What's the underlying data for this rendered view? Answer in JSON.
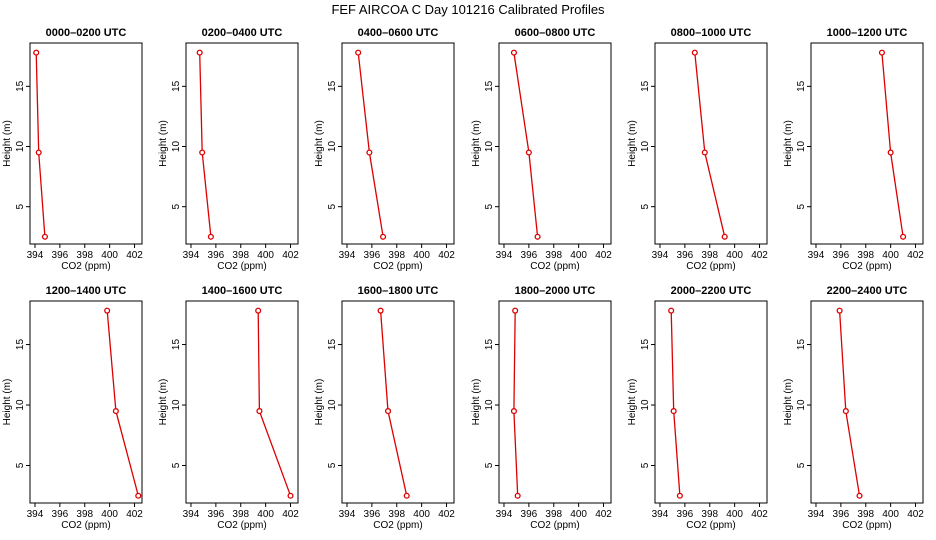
{
  "title": "FEF AIRCOA C  Day 101216  Calibrated Profiles",
  "colors": {
    "series": "#dd0000",
    "axis": "#000000"
  },
  "chart_data": {
    "type": "line",
    "layout": "small-multiples 2x6",
    "xlabel": "CO2 (ppm)",
    "ylabel": "Height (m)",
    "xlim": [
      393.6,
      402.6
    ],
    "ylim": [
      1.9,
      18.6
    ],
    "xticks": [
      394,
      396,
      398,
      400,
      402
    ],
    "yticks": [
      5,
      10,
      15
    ],
    "grid": false,
    "heights": [
      17.8,
      9.5,
      2.5
    ],
    "panels": [
      {
        "title": "0000–0200 UTC",
        "co2": [
          394.1,
          394.3,
          394.8
        ]
      },
      {
        "title": "0200–0400 UTC",
        "co2": [
          394.7,
          394.9,
          395.6
        ]
      },
      {
        "title": "0400–0600 UTC",
        "co2": [
          394.9,
          395.8,
          396.9
        ]
      },
      {
        "title": "0600–0800 UTC",
        "co2": [
          394.8,
          396.0,
          396.7
        ]
      },
      {
        "title": "0800–1000 UTC",
        "co2": [
          396.8,
          397.6,
          399.2
        ]
      },
      {
        "title": "1000–1200 UTC",
        "co2": [
          399.3,
          400.0,
          401.0
        ]
      },
      {
        "title": "1200–1400 UTC",
        "co2": [
          399.8,
          400.5,
          402.3
        ]
      },
      {
        "title": "1400–1600 UTC",
        "co2": [
          399.4,
          399.5,
          402.0
        ]
      },
      {
        "title": "1600–1800 UTC",
        "co2": [
          396.7,
          397.3,
          398.8
        ]
      },
      {
        "title": "1800–2000 UTC",
        "co2": [
          394.9,
          394.8,
          395.1
        ]
      },
      {
        "title": "2000–2200 UTC",
        "co2": [
          394.9,
          395.1,
          395.6
        ]
      },
      {
        "title": "2200–2400 UTC",
        "co2": [
          395.9,
          396.4,
          397.5
        ]
      }
    ]
  }
}
